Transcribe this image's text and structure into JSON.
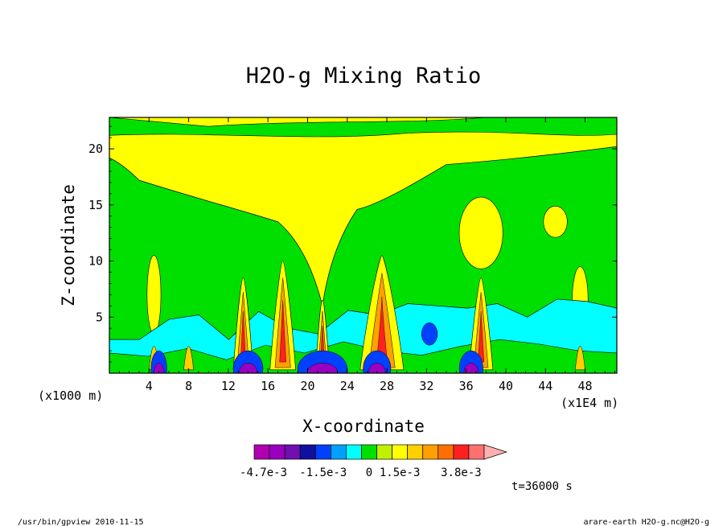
{
  "chart_data": {
    "type": "heatmap",
    "title": "H2O-g Mixing Ratio",
    "xlabel": "X-coordinate",
    "ylabel": "Z-coordinate",
    "x_units_left": "(x1000 m)",
    "x_units_right": "(x1E4 m)",
    "x_ticks": [
      "4",
      "8",
      "12",
      "16",
      "20",
      "24",
      "28",
      "32",
      "36",
      "40",
      "44",
      "48"
    ],
    "x_tick_values": [
      4,
      8,
      12,
      16,
      20,
      24,
      28,
      32,
      36,
      40,
      44,
      48
    ],
    "y_ticks": [
      "5",
      "10",
      "15",
      "20"
    ],
    "y_tick_values": [
      5,
      10,
      15,
      20
    ],
    "xlim": [
      0,
      51.2
    ],
    "ylim": [
      0,
      22.8
    ],
    "colorbar": {
      "colors": [
        "#b000b0",
        "#9a00c0",
        "#7010b0",
        "#1010a0",
        "#0040ff",
        "#00a0ff",
        "#00ffff",
        "#00e000",
        "#c0f000",
        "#ffff00",
        "#ffd000",
        "#ffa000",
        "#ff7000",
        "#ff2020",
        "#ff7070",
        "#ffb0b0"
      ],
      "labels": [
        "-4.7e-3",
        "-1.5e-3",
        "0",
        "1.5e-3",
        "3.8e-3"
      ]
    },
    "time_label": "t=36000 s",
    "footer_left": "/usr/bin/gpview  2010-11-15",
    "footer_right": "arare-earth_H2O-g.nc@H2O-g",
    "field": {
      "background": "#00e000",
      "upper_band": "#ffff00",
      "low_band": "#00ffff",
      "plumes_x": [
        4.5,
        8,
        13.5,
        17.5,
        21.5,
        27.5,
        37.5,
        47.5
      ],
      "tower_x": [
        13.5,
        17.5,
        21.5,
        27.5,
        37.5
      ],
      "negative_patches_x": [
        5,
        14,
        21.5,
        27,
        36.5
      ]
    }
  }
}
